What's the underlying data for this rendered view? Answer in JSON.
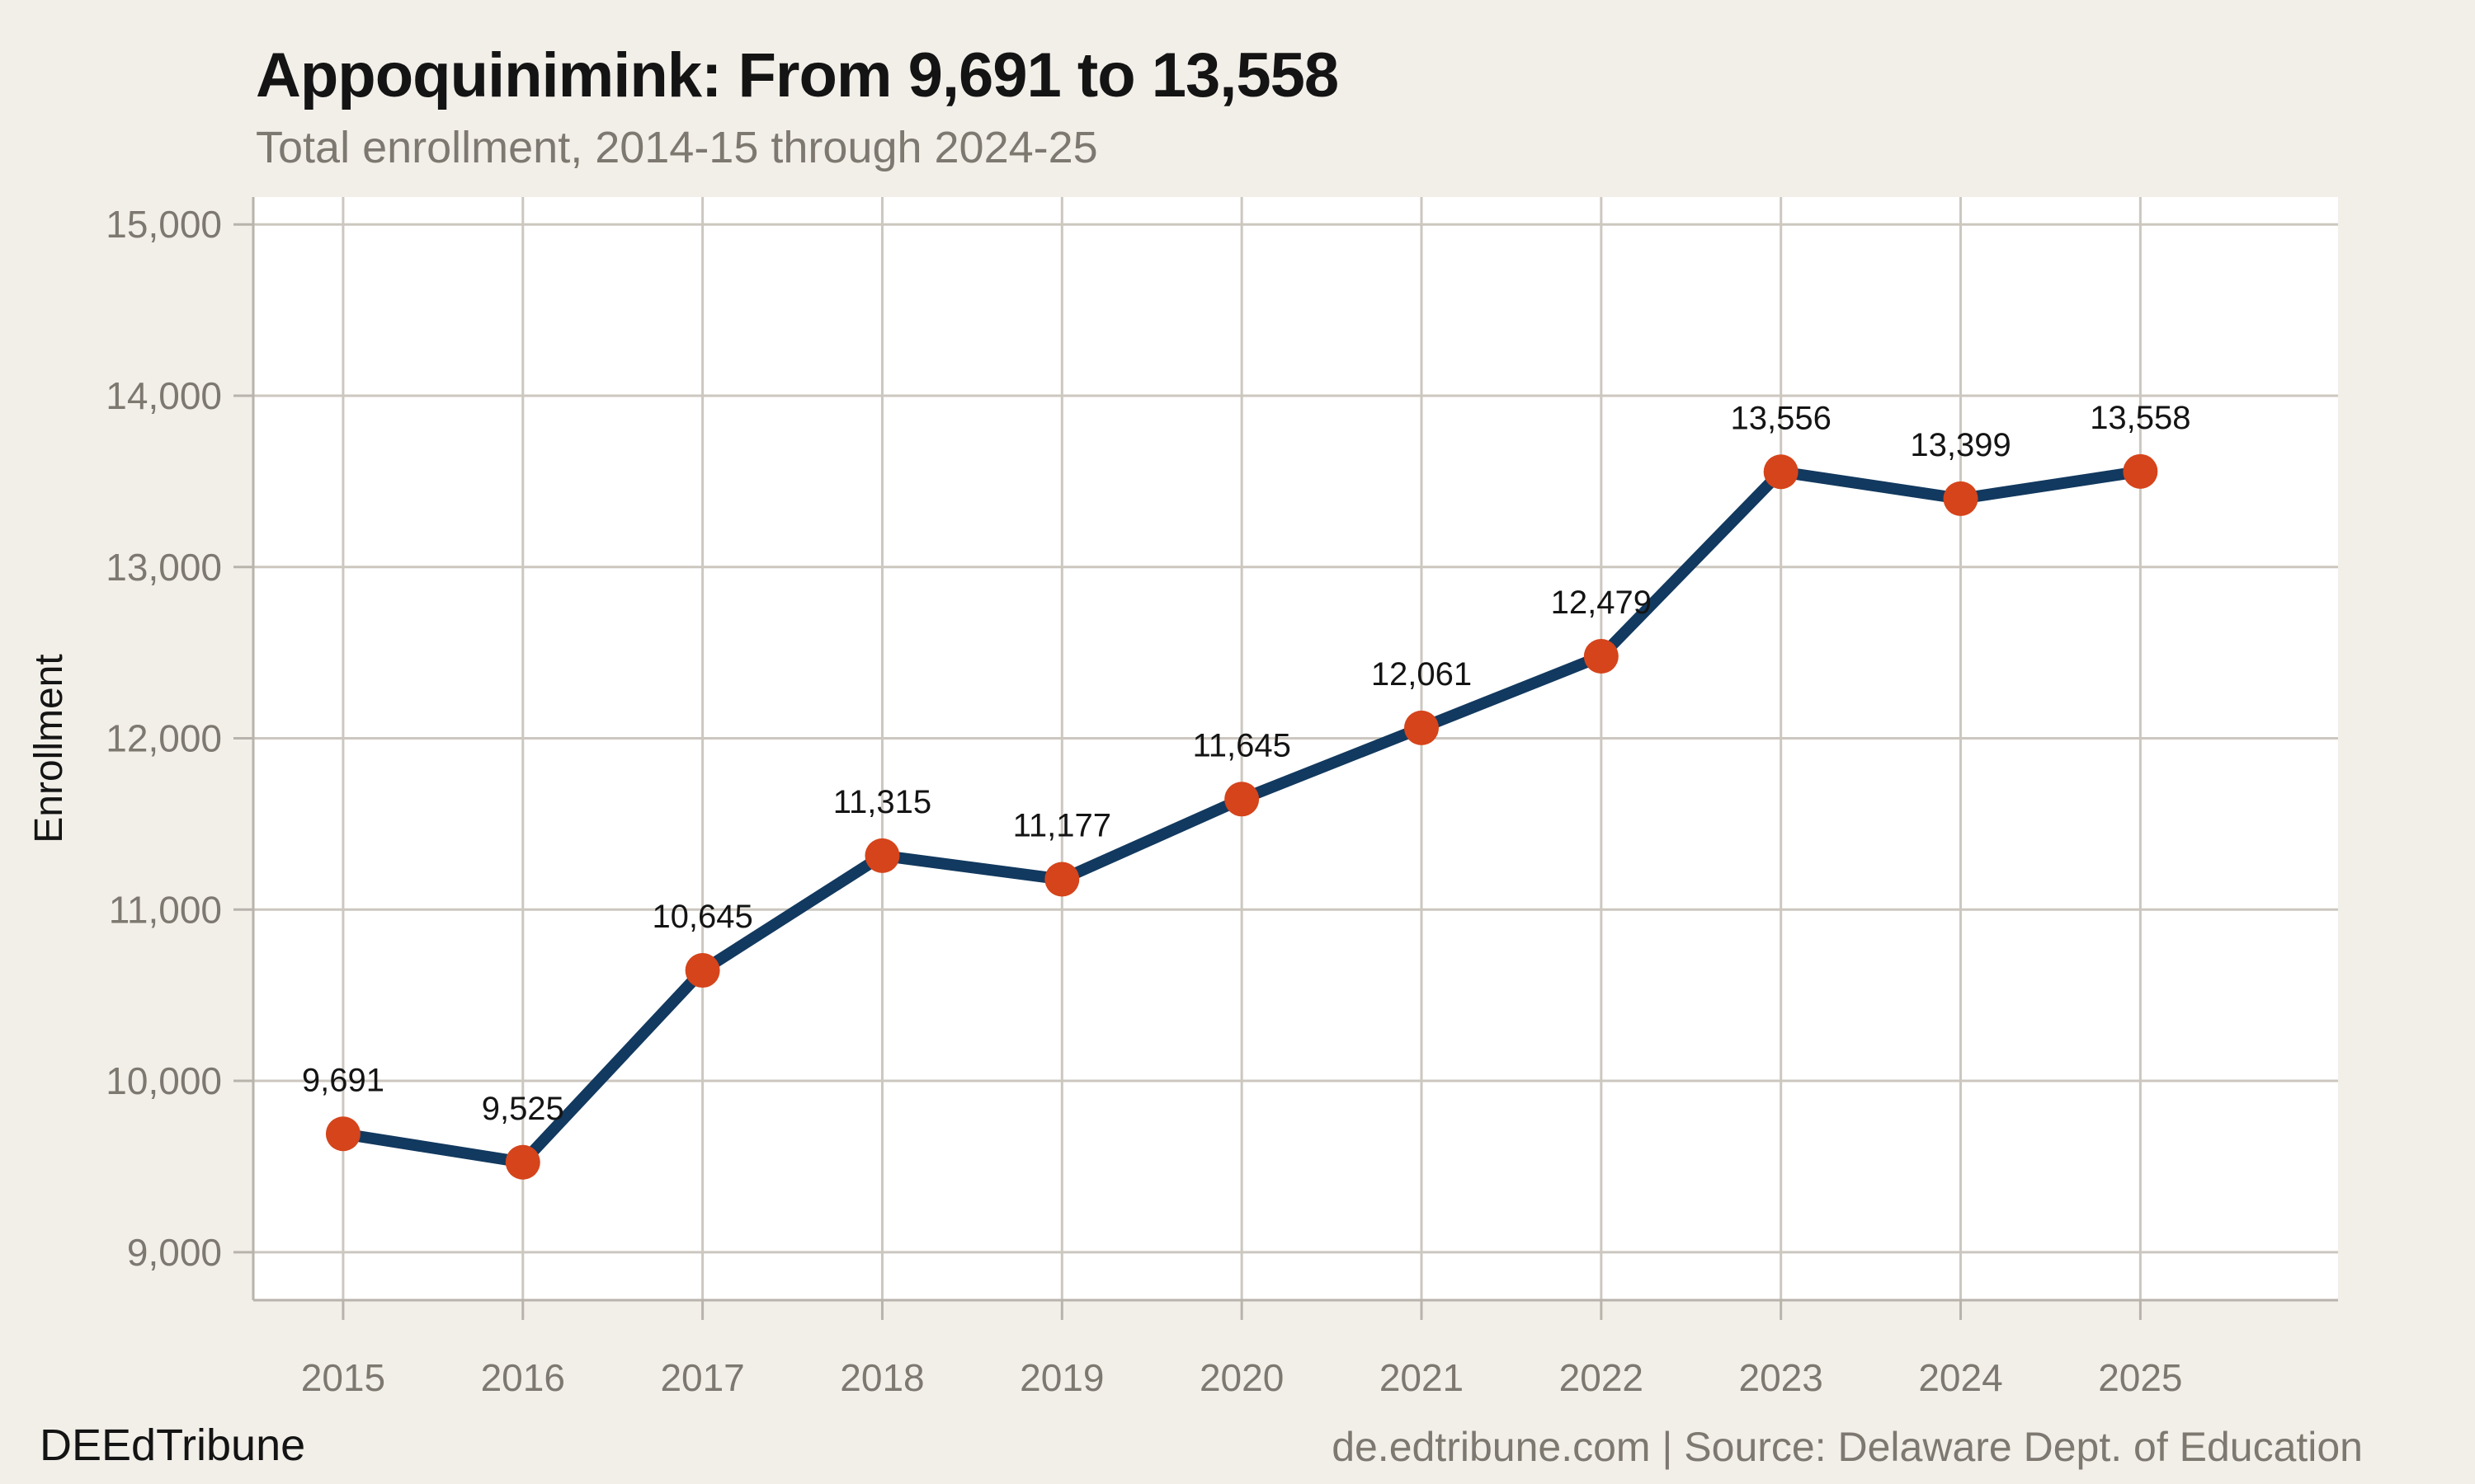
{
  "header": {
    "title": "Appoquinimink: From 9,691 to 13,558",
    "subtitle": "Total enrollment, 2014-15 through 2024-25"
  },
  "footer": {
    "brand": "DEEdTribune",
    "source": "de.edtribune.com | Source: Delaware Dept. of Education"
  },
  "chart_data": {
    "type": "line",
    "title": "Appoquinimink: From 9,691 to 13,558",
    "subtitle": "Total enrollment, 2014-15 through 2024-25",
    "xlabel": "",
    "ylabel": "Enrollment",
    "x": [
      2015,
      2016,
      2017,
      2018,
      2019,
      2020,
      2021,
      2022,
      2023,
      2024,
      2025
    ],
    "xtick_labels": [
      "2015",
      "2016",
      "2017",
      "2018",
      "2019",
      "2020",
      "2021",
      "2022",
      "2023",
      "2024",
      "2025"
    ],
    "series": [
      {
        "name": "Total enrollment",
        "values": [
          9691,
          9525,
          10645,
          11315,
          11177,
          11645,
          12061,
          12479,
          13556,
          13399,
          13558
        ],
        "point_labels": [
          "9,691",
          "9,525",
          "10,645",
          "11,315",
          "11,177",
          "11,645",
          "12,061",
          "12,479",
          "13,556",
          "13,399",
          "13,558"
        ]
      }
    ],
    "yticks": [
      9000,
      10000,
      11000,
      12000,
      13000,
      14000,
      15000
    ],
    "ytick_labels": [
      "9,000",
      "10,000",
      "11,000",
      "12,000",
      "13,000",
      "14,000",
      "15,000"
    ],
    "ylim": [
      8720,
      15160
    ],
    "xlim": [
      2014.5,
      2026.1
    ],
    "grid": true,
    "legend": "none"
  },
  "colors": {
    "background": "#f2efe9",
    "plot_background": "#ffffff",
    "grid": "#ccc7bf",
    "axis": "#b8b3ab",
    "line": "#12395f",
    "marker": "#d5441b",
    "muted_text": "#7d7870",
    "text": "#141414"
  }
}
